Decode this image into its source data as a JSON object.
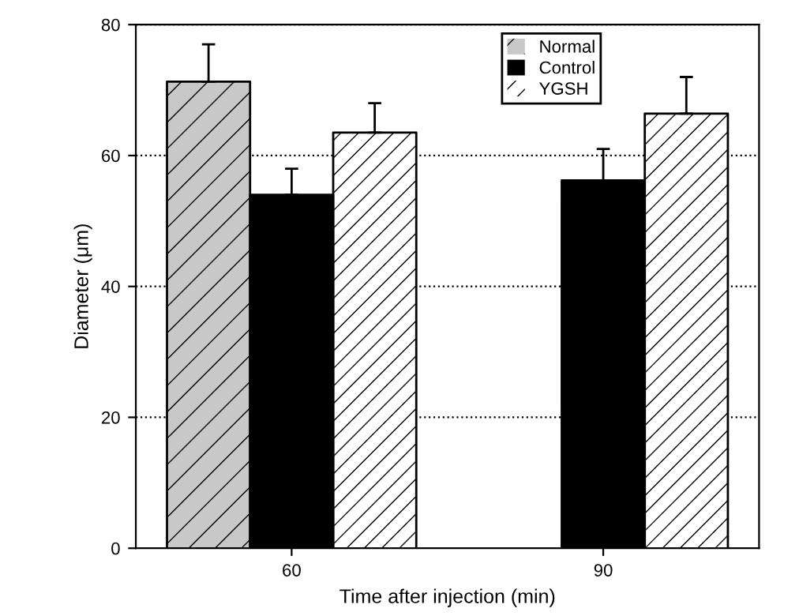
{
  "chart_data": {
    "type": "bar",
    "xlabel": "Time after injection (min)",
    "ylabel": "Diameter (μm)",
    "categories": [
      "60",
      "90"
    ],
    "series": [
      {
        "name": "Normal",
        "color": "#c8c8c8",
        "values": [
          71.3,
          null
        ],
        "errors": [
          [
            71.3,
            77
          ],
          null
        ]
      },
      {
        "name": "Control",
        "color": "#000000",
        "values": [
          54,
          56.2
        ],
        "errors": [
          [
            54,
            58
          ],
          [
            56.2,
            61
          ]
        ]
      },
      {
        "name": "YGSH",
        "color": "#ffffff",
        "values": [
          63.5,
          66.4
        ],
        "errors": [
          [
            63.5,
            68
          ],
          [
            66.4,
            72
          ]
        ]
      }
    ],
    "ylim": [
      0,
      80
    ],
    "yticks": [
      0,
      20,
      40,
      60,
      80
    ],
    "grid": "y",
    "legend": "top right"
  }
}
